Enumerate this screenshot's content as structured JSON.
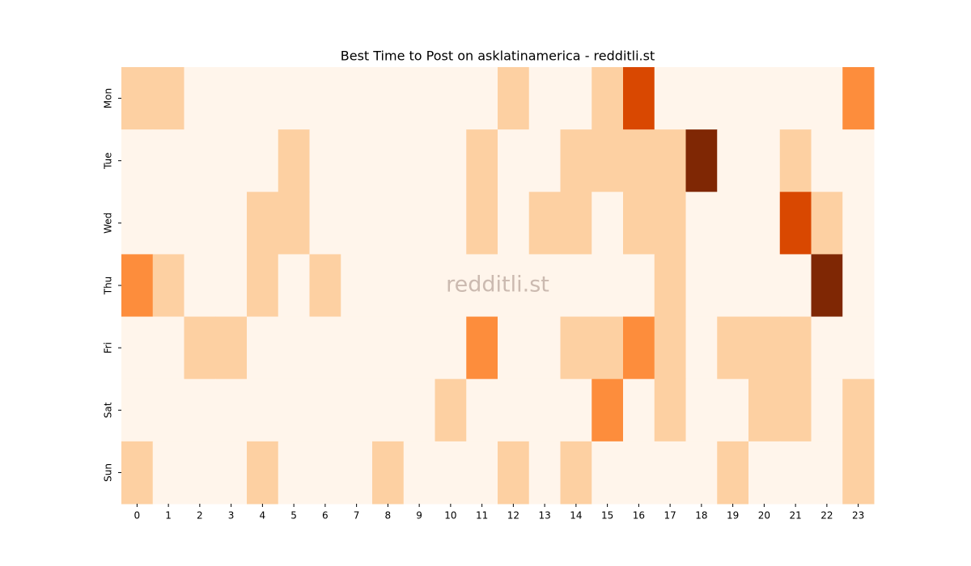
{
  "chart_data": {
    "type": "heatmap",
    "title": "Best Time to Post on asklatinamerica - redditli.st",
    "watermark": "redditli.st",
    "x": [
      "0",
      "1",
      "2",
      "3",
      "4",
      "5",
      "6",
      "7",
      "8",
      "9",
      "10",
      "11",
      "12",
      "13",
      "14",
      "15",
      "16",
      "17",
      "18",
      "19",
      "20",
      "21",
      "22",
      "23"
    ],
    "categories": [
      "Mon",
      "Tue",
      "Wed",
      "Thu",
      "Fri",
      "Sat",
      "Sun"
    ],
    "colorscale": [
      "#fff5eb",
      "#fdd0a2",
      "#fd8d3c",
      "#d94801",
      "#7f2704"
    ],
    "values": [
      [
        1,
        1,
        0,
        0,
        0,
        0,
        0,
        0,
        0,
        0,
        0,
        0,
        1,
        0,
        0,
        1,
        3,
        0,
        0,
        0,
        0,
        0,
        0,
        2
      ],
      [
        0,
        0,
        0,
        0,
        0,
        1,
        0,
        0,
        0,
        0,
        0,
        1,
        0,
        0,
        1,
        1,
        1,
        1,
        4,
        0,
        0,
        1,
        0,
        0
      ],
      [
        0,
        0,
        0,
        0,
        1,
        1,
        0,
        0,
        0,
        0,
        0,
        1,
        0,
        1,
        1,
        0,
        1,
        1,
        0,
        0,
        0,
        3,
        1,
        0
      ],
      [
        2,
        1,
        0,
        0,
        1,
        0,
        1,
        0,
        0,
        0,
        0,
        0,
        0,
        0,
        0,
        0,
        0,
        1,
        0,
        0,
        0,
        0,
        4,
        0
      ],
      [
        0,
        0,
        1,
        1,
        0,
        0,
        0,
        0,
        0,
        0,
        0,
        2,
        0,
        0,
        1,
        1,
        2,
        1,
        0,
        1,
        1,
        1,
        0,
        0
      ],
      [
        0,
        0,
        0,
        0,
        0,
        0,
        0,
        0,
        0,
        0,
        1,
        0,
        0,
        0,
        0,
        2,
        0,
        1,
        0,
        0,
        1,
        1,
        0,
        1
      ],
      [
        1,
        0,
        0,
        0,
        1,
        0,
        0,
        0,
        1,
        0,
        0,
        0,
        1,
        0,
        1,
        0,
        0,
        0,
        0,
        1,
        0,
        0,
        0,
        1
      ]
    ]
  }
}
